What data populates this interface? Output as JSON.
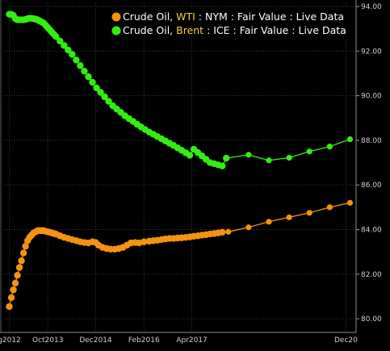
{
  "chart_data": {
    "type": "line",
    "title": "",
    "xlabel": "",
    "ylabel": "",
    "ylim": [
      79.5,
      94.2
    ],
    "grid": true,
    "legend_position": "top-right",
    "y_ticks": [
      "94.00",
      "92.00",
      "90.00",
      "88.00",
      "86.00",
      "84.00",
      "82.00",
      "80.00"
    ],
    "x_tick_labels": [
      {
        "label": "g2012",
        "x": 0.05
      },
      {
        "label": "Oct2013",
        "x": 1.0
      },
      {
        "label": "Dec2014",
        "x": 2.18
      },
      {
        "label": "Feb2016",
        "x": 3.37
      },
      {
        "label": "Apr2017",
        "x": 4.55
      },
      {
        "label": "Dec20",
        "x": 8.35
      }
    ],
    "xlim": [
      0,
      8.6
    ],
    "series": [
      {
        "name": "Crude Oil, WTI : NYM : Fair Value : Live Data",
        "legend_parts": [
          "Crude Oil, ",
          "WTI",
          " : NYM : Fair Value : Live Data"
        ],
        "color": "#f5920f",
        "x": [
          0.05,
          0.1,
          0.15,
          0.2,
          0.25,
          0.3,
          0.35,
          0.4,
          0.45,
          0.5,
          0.55,
          0.6,
          0.65,
          0.7,
          0.75,
          0.8,
          0.85,
          0.9,
          0.95,
          1.0,
          1.05,
          1.1,
          1.15,
          1.2,
          1.3,
          1.4,
          1.5,
          1.6,
          1.7,
          1.8,
          1.9,
          2.0,
          2.1,
          2.18,
          2.25,
          2.35,
          2.45,
          2.55,
          2.65,
          2.75,
          2.85,
          2.95,
          3.05,
          3.15,
          3.25,
          3.37,
          3.5,
          3.6,
          3.7,
          3.8,
          3.9,
          4.0,
          4.1,
          4.2,
          4.3,
          4.4,
          4.5,
          4.6,
          4.7,
          4.8,
          4.9,
          5.0,
          5.1,
          5.2,
          5.3,
          5.45,
          5.95,
          6.45,
          6.95,
          7.45,
          7.95,
          8.45
        ],
        "values": [
          80.55,
          80.95,
          81.3,
          81.6,
          81.95,
          82.3,
          82.6,
          82.95,
          83.25,
          83.5,
          83.65,
          83.75,
          83.85,
          83.9,
          83.95,
          83.95,
          83.95,
          83.95,
          83.92,
          83.9,
          83.88,
          83.85,
          83.82,
          83.8,
          83.72,
          83.65,
          83.6,
          83.55,
          83.5,
          83.45,
          83.42,
          83.4,
          83.45,
          83.42,
          83.3,
          83.2,
          83.15,
          83.12,
          83.12,
          83.15,
          83.2,
          83.3,
          83.4,
          83.42,
          83.4,
          83.45,
          83.48,
          83.5,
          83.52,
          83.55,
          83.58,
          83.6,
          83.6,
          83.62,
          83.63,
          83.65,
          83.67,
          83.7,
          83.72,
          83.75,
          83.77,
          83.8,
          83.82,
          83.85,
          83.88,
          83.9,
          84.1,
          84.35,
          84.55,
          84.75,
          85.0,
          85.2
        ]
      },
      {
        "name": "Crude Oil, Brent : ICE : Fair Value : Live Data",
        "legend_parts": [
          "Crude Oil, ",
          "Brent",
          " : ICE : Fair Value : Live Data"
        ],
        "color": "#32ee13",
        "x": [
          0.05,
          0.1,
          0.15,
          0.2,
          0.25,
          0.3,
          0.35,
          0.4,
          0.45,
          0.5,
          0.55,
          0.6,
          0.65,
          0.7,
          0.75,
          0.8,
          0.85,
          0.9,
          0.95,
          1.0,
          1.05,
          1.1,
          1.15,
          1.2,
          1.3,
          1.4,
          1.5,
          1.6,
          1.7,
          1.8,
          1.9,
          2.0,
          2.1,
          2.2,
          2.3,
          2.4,
          2.5,
          2.6,
          2.7,
          2.8,
          2.9,
          3.0,
          3.1,
          3.2,
          3.3,
          3.4,
          3.5,
          3.6,
          3.7,
          3.8,
          3.9,
          4.0,
          4.1,
          4.2,
          4.3,
          4.4,
          4.5,
          4.6,
          4.7,
          4.8,
          4.9,
          5.0,
          5.1,
          5.2,
          5.3,
          5.4,
          5.95,
          6.45,
          6.95,
          7.45,
          7.95,
          8.45
        ],
        "values": [
          93.65,
          93.65,
          93.6,
          93.45,
          93.4,
          93.4,
          93.4,
          93.4,
          93.42,
          93.45,
          93.47,
          93.47,
          93.45,
          93.43,
          93.4,
          93.35,
          93.3,
          93.25,
          93.15,
          93.05,
          92.95,
          92.85,
          92.75,
          92.65,
          92.45,
          92.25,
          92.05,
          91.85,
          91.6,
          91.35,
          91.1,
          90.85,
          90.6,
          90.35,
          90.15,
          89.95,
          89.75,
          89.55,
          89.4,
          89.25,
          89.1,
          88.97,
          88.85,
          88.72,
          88.6,
          88.48,
          88.37,
          88.27,
          88.17,
          88.07,
          87.97,
          87.87,
          87.77,
          87.66,
          87.55,
          87.44,
          87.33,
          87.6,
          87.45,
          87.3,
          87.15,
          87.0,
          86.95,
          86.9,
          86.85,
          87.2,
          87.35,
          87.1,
          87.22,
          87.5,
          87.72,
          88.05
        ]
      }
    ]
  }
}
